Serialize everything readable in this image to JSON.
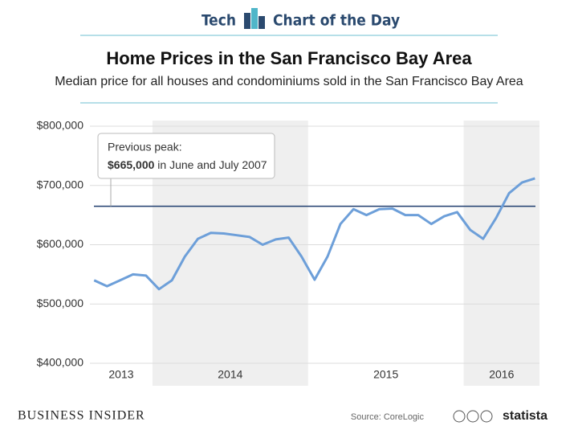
{
  "header": {
    "left": "Tech",
    "right": "Chart of the Day"
  },
  "chart_data": {
    "type": "line",
    "title": "Home Prices in the San Francisco Bay Area",
    "subtitle": "Median price for all houses and condominiums sold in the San Francisco Bay Area",
    "x": [
      2013.625,
      2013.708,
      2013.792,
      2013.875,
      2013.958,
      2014.042,
      2014.125,
      2014.208,
      2014.292,
      2014.375,
      2014.458,
      2014.542,
      2014.625,
      2014.708,
      2014.792,
      2014.875,
      2014.958,
      2015.042,
      2015.125,
      2015.208,
      2015.292,
      2015.375,
      2015.458,
      2015.542,
      2015.625,
      2015.708,
      2015.792,
      2015.875,
      2015.958,
      2016.042,
      2016.125,
      2016.208,
      2016.292,
      2016.375,
      2016.458
    ],
    "values": [
      540000,
      530000,
      540000,
      550000,
      548000,
      525000,
      540000,
      580000,
      610000,
      620000,
      619000,
      616000,
      613000,
      600000,
      609000,
      612000,
      580000,
      541000,
      580000,
      635000,
      660000,
      650000,
      660000,
      661000,
      650000,
      650000,
      635000,
      648000,
      655000,
      625000,
      610000,
      645000,
      687000,
      705000,
      712000
    ],
    "color": "#6d9fd9",
    "xlim": [
      2013.598,
      2016.487
    ],
    "xticks": [
      {
        "value": 2013,
        "label": "2013"
      },
      {
        "value": 2014,
        "label": "2014"
      },
      {
        "value": 2015,
        "label": "2015"
      },
      {
        "value": 2016,
        "label": "2016"
      }
    ],
    "ylim": [
      400000,
      800000
    ],
    "yticks": [
      {
        "value": 400000,
        "label": "$400,000"
      },
      {
        "value": 500000,
        "label": "$500,000"
      },
      {
        "value": 600000,
        "label": "$600,000"
      },
      {
        "value": 700000,
        "label": "$700,000"
      },
      {
        "value": 800000,
        "label": "$800,000"
      }
    ],
    "grid": true,
    "reference_line": {
      "value": 665000,
      "color": "#1f3d6e",
      "title": "Previous peak:",
      "value_label": "$665,000",
      "text": "in June and July 2007"
    }
  },
  "footer": {
    "brand": "BUSINESS INSIDER",
    "source": "Source: CoreLogic",
    "logo": "statista"
  }
}
